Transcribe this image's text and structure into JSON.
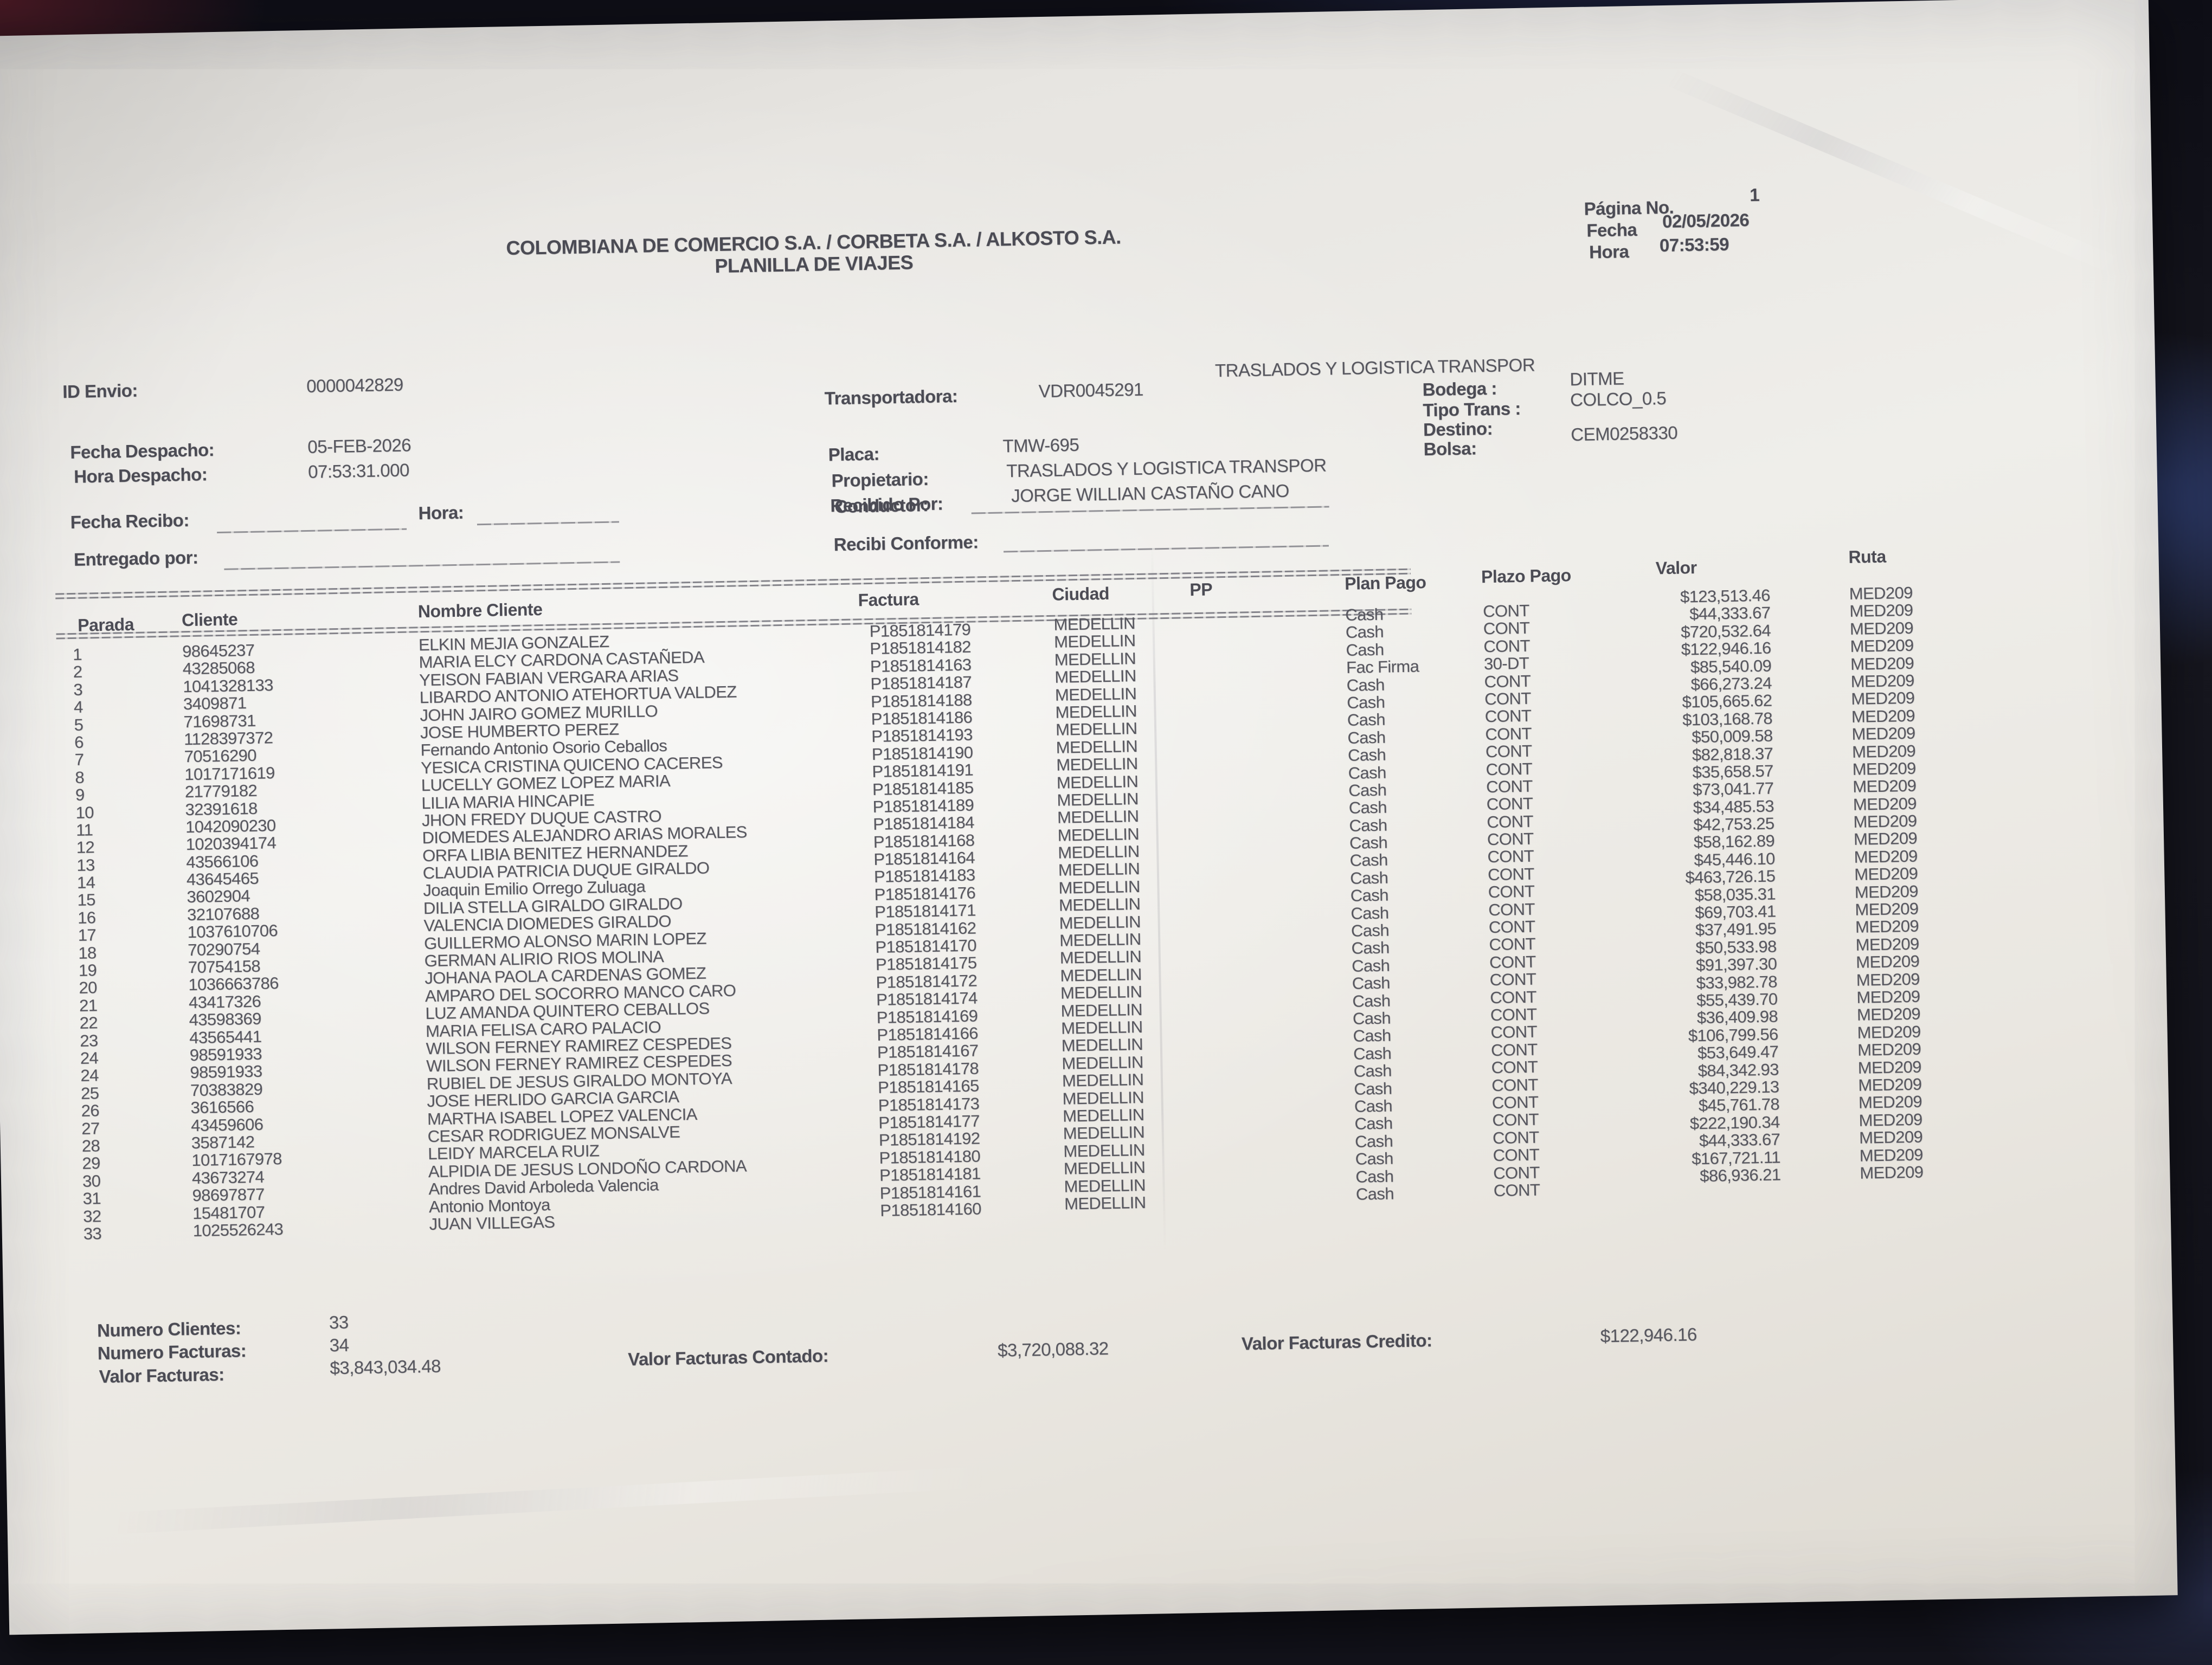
{
  "header": {
    "title_line1": "COLOMBIANA DE COMERCIO S.A. / CORBETA S.A. / ALKOSTO S.A.",
    "title_line2": "PLANILLA DE VIAJES",
    "pagina_label": "Página No.",
    "pagina_no": "1",
    "fecha_label": "Fecha",
    "fecha": "02/05/2026",
    "hora_label": "Hora",
    "hora": "07:53:59"
  },
  "envio": {
    "id_envio_label": "ID Envio:",
    "id_envio": "0000042829",
    "fecha_despacho_label": "Fecha Despacho:",
    "fecha_despacho": "05-FEB-2026",
    "hora_despacho_label": "Hora Despacho:",
    "hora_despacho": "07:53:31.000"
  },
  "transporte": {
    "transportadora_label": "Transportadora:",
    "transportadora_codigo": "VDR0045291",
    "transportadora_nombre": "TRASLADOS Y LOGISTICA TRANSPOR",
    "placa_label": "Placa:",
    "placa": "TMW-695",
    "propietario_label": "Propietario:",
    "propietario": "TRASLADOS Y LOGISTICA TRANSPOR",
    "conductor_label": "Conductor:",
    "conductor": "JORGE WILLIAN CASTAÑO CANO",
    "bodega_label": "Bodega :",
    "bodega": "DITME",
    "tipo_trans_label": "Tipo Trans :",
    "tipo_trans": "COLCO_0.5",
    "destino_label": "Destino:",
    "destino": "",
    "bolsa_label": "Bolsa:",
    "bolsa": "CEM0258330"
  },
  "recepcion": {
    "fecha_recibo_label": "Fecha Recibo:",
    "hora_label": "Hora:",
    "recibido_por_label": "Recibido Por:",
    "entregado_por_label": "Entregado por:",
    "recibi_conforme_label": "Recibi Conforme:"
  },
  "table": {
    "headers": {
      "parada": "Parada",
      "cliente": "Cliente",
      "nombre": "Nombre Cliente",
      "factura": "Factura",
      "ciudad": "Ciudad",
      "pp": "PP",
      "plan": "Plan Pago",
      "plazo": "Plazo Pago",
      "valor": "Valor",
      "ruta": "Ruta"
    },
    "rows": [
      {
        "parada": "1",
        "cliente": "98645237",
        "nombre": "ELKIN MEJIA GONZALEZ",
        "factura": "P1851814179",
        "ciudad": "MEDELLIN",
        "plan": "Cash",
        "plazo": "CONT",
        "valor": "$123,513.46",
        "ruta": "MED209"
      },
      {
        "parada": "2",
        "cliente": "43285068",
        "nombre": "MARIA ELCY CARDONA CASTAÑEDA",
        "factura": "P1851814182",
        "ciudad": "MEDELLIN",
        "plan": "Cash",
        "plazo": "CONT",
        "valor": "$44,333.67",
        "ruta": "MED209"
      },
      {
        "parada": "3",
        "cliente": "1041328133",
        "nombre": "YEISON FABIAN VERGARA ARIAS",
        "factura": "P1851814163",
        "ciudad": "MEDELLIN",
        "plan": "Cash",
        "plazo": "CONT",
        "valor": "$720,532.64",
        "ruta": "MED209"
      },
      {
        "parada": "4",
        "cliente": "3409871",
        "nombre": "LIBARDO ANTONIO ATEHORTUA VALDEZ",
        "factura": "P1851814187",
        "ciudad": "MEDELLIN",
        "plan": "Fac Firma",
        "plazo": "30-DT",
        "valor": "$122,946.16",
        "ruta": "MED209"
      },
      {
        "parada": "5",
        "cliente": "71698731",
        "nombre": "JOHN JAIRO GOMEZ MURILLO",
        "factura": "P1851814188",
        "ciudad": "MEDELLIN",
        "plan": "Cash",
        "plazo": "CONT",
        "valor": "$85,540.09",
        "ruta": "MED209"
      },
      {
        "parada": "6",
        "cliente": "1128397372",
        "nombre": "JOSE HUMBERTO PEREZ",
        "factura": "P1851814186",
        "ciudad": "MEDELLIN",
        "plan": "Cash",
        "plazo": "CONT",
        "valor": "$66,273.24",
        "ruta": "MED209"
      },
      {
        "parada": "7",
        "cliente": "70516290",
        "nombre": "Fernando Antonio Osorio Ceballos",
        "factura": "P1851814193",
        "ciudad": "MEDELLIN",
        "plan": "Cash",
        "plazo": "CONT",
        "valor": "$105,665.62",
        "ruta": "MED209"
      },
      {
        "parada": "8",
        "cliente": "1017171619",
        "nombre": "YESICA CRISTINA QUICENO CACERES",
        "factura": "P1851814190",
        "ciudad": "MEDELLIN",
        "plan": "Cash",
        "plazo": "CONT",
        "valor": "$103,168.78",
        "ruta": "MED209"
      },
      {
        "parada": "9",
        "cliente": "21779182",
        "nombre": "LUCELLY GOMEZ LOPEZ MARIA",
        "factura": "P1851814191",
        "ciudad": "MEDELLIN",
        "plan": "Cash",
        "plazo": "CONT",
        "valor": "$50,009.58",
        "ruta": "MED209"
      },
      {
        "parada": "10",
        "cliente": "32391618",
        "nombre": "LILIA MARIA HINCAPIE",
        "factura": "P1851814185",
        "ciudad": "MEDELLIN",
        "plan": "Cash",
        "plazo": "CONT",
        "valor": "$82,818.37",
        "ruta": "MED209"
      },
      {
        "parada": "11",
        "cliente": "1042090230",
        "nombre": "JHON FREDY DUQUE CASTRO",
        "factura": "P1851814189",
        "ciudad": "MEDELLIN",
        "plan": "Cash",
        "plazo": "CONT",
        "valor": "$35,658.57",
        "ruta": "MED209"
      },
      {
        "parada": "12",
        "cliente": "1020394174",
        "nombre": "DIOMEDES ALEJANDRO ARIAS MORALES",
        "factura": "P1851814184",
        "ciudad": "MEDELLIN",
        "plan": "Cash",
        "plazo": "CONT",
        "valor": "$73,041.77",
        "ruta": "MED209"
      },
      {
        "parada": "13",
        "cliente": "43566106",
        "nombre": "ORFA LIBIA BENITEZ HERNANDEZ",
        "factura": "P1851814168",
        "ciudad": "MEDELLIN",
        "plan": "Cash",
        "plazo": "CONT",
        "valor": "$34,485.53",
        "ruta": "MED209"
      },
      {
        "parada": "14",
        "cliente": "43645465",
        "nombre": "CLAUDIA PATRICIA DUQUE GIRALDO",
        "factura": "P1851814164",
        "ciudad": "MEDELLIN",
        "plan": "Cash",
        "plazo": "CONT",
        "valor": "$42,753.25",
        "ruta": "MED209"
      },
      {
        "parada": "15",
        "cliente": "3602904",
        "nombre": "Joaquin Emilio Orrego Zuluaga",
        "factura": "P1851814183",
        "ciudad": "MEDELLIN",
        "plan": "Cash",
        "plazo": "CONT",
        "valor": "$58,162.89",
        "ruta": "MED209"
      },
      {
        "parada": "16",
        "cliente": "32107688",
        "nombre": "DILIA STELLA GIRALDO GIRALDO",
        "factura": "P1851814176",
        "ciudad": "MEDELLIN",
        "plan": "Cash",
        "plazo": "CONT",
        "valor": "$45,446.10",
        "ruta": "MED209"
      },
      {
        "parada": "17",
        "cliente": "1037610706",
        "nombre": "VALENCIA DIOMEDES GIRALDO",
        "factura": "P1851814171",
        "ciudad": "MEDELLIN",
        "plan": "Cash",
        "plazo": "CONT",
        "valor": "$463,726.15",
        "ruta": "MED209"
      },
      {
        "parada": "18",
        "cliente": "70290754",
        "nombre": "GUILLERMO ALONSO MARIN LOPEZ",
        "factura": "P1851814162",
        "ciudad": "MEDELLIN",
        "plan": "Cash",
        "plazo": "CONT",
        "valor": "$58,035.31",
        "ruta": "MED209"
      },
      {
        "parada": "19",
        "cliente": "70754158",
        "nombre": "GERMAN ALIRIO RIOS MOLINA",
        "factura": "P1851814170",
        "ciudad": "MEDELLIN",
        "plan": "Cash",
        "plazo": "CONT",
        "valor": "$69,703.41",
        "ruta": "MED209"
      },
      {
        "parada": "20",
        "cliente": "1036663786",
        "nombre": "JOHANA PAOLA CARDENAS GOMEZ",
        "factura": "P1851814175",
        "ciudad": "MEDELLIN",
        "plan": "Cash",
        "plazo": "CONT",
        "valor": "$37,491.95",
        "ruta": "MED209"
      },
      {
        "parada": "21",
        "cliente": "43417326",
        "nombre": "AMPARO DEL SOCORRO MANCO CARO",
        "factura": "P1851814172",
        "ciudad": "MEDELLIN",
        "plan": "Cash",
        "plazo": "CONT",
        "valor": "$50,533.98",
        "ruta": "MED209"
      },
      {
        "parada": "22",
        "cliente": "43598369",
        "nombre": "LUZ AMANDA QUINTERO CEBALLOS",
        "factura": "P1851814174",
        "ciudad": "MEDELLIN",
        "plan": "Cash",
        "plazo": "CONT",
        "valor": "$91,397.30",
        "ruta": "MED209"
      },
      {
        "parada": "23",
        "cliente": "43565441",
        "nombre": "MARIA FELISA CARO PALACIO",
        "factura": "P1851814169",
        "ciudad": "MEDELLIN",
        "plan": "Cash",
        "plazo": "CONT",
        "valor": "$33,982.78",
        "ruta": "MED209"
      },
      {
        "parada": "24",
        "cliente": "98591933",
        "nombre": "WILSON FERNEY RAMIREZ CESPEDES",
        "factura": "P1851814166",
        "ciudad": "MEDELLIN",
        "plan": "Cash",
        "plazo": "CONT",
        "valor": "$55,439.70",
        "ruta": "MED209"
      },
      {
        "parada": "24",
        "cliente": "98591933",
        "nombre": "WILSON FERNEY RAMIREZ CESPEDES",
        "factura": "P1851814167",
        "ciudad": "MEDELLIN",
        "plan": "Cash",
        "plazo": "CONT",
        "valor": "$36,409.98",
        "ruta": "MED209"
      },
      {
        "parada": "25",
        "cliente": "70383829",
        "nombre": "RUBIEL DE JESUS GIRALDO MONTOYA",
        "factura": "P1851814178",
        "ciudad": "MEDELLIN",
        "plan": "Cash",
        "plazo": "CONT",
        "valor": "$106,799.56",
        "ruta": "MED209"
      },
      {
        "parada": "26",
        "cliente": "3616566",
        "nombre": "JOSE HERLIDO GARCIA GARCIA",
        "factura": "P1851814165",
        "ciudad": "MEDELLIN",
        "plan": "Cash",
        "plazo": "CONT",
        "valor": "$53,649.47",
        "ruta": "MED209"
      },
      {
        "parada": "27",
        "cliente": "43459606",
        "nombre": "MARTHA ISABEL LOPEZ VALENCIA",
        "factura": "P1851814173",
        "ciudad": "MEDELLIN",
        "plan": "Cash",
        "plazo": "CONT",
        "valor": "$84,342.93",
        "ruta": "MED209"
      },
      {
        "parada": "28",
        "cliente": "3587142",
        "nombre": "CESAR RODRIGUEZ MONSALVE",
        "factura": "P1851814177",
        "ciudad": "MEDELLIN",
        "plan": "Cash",
        "plazo": "CONT",
        "valor": "$340,229.13",
        "ruta": "MED209"
      },
      {
        "parada": "29",
        "cliente": "1017167978",
        "nombre": "LEIDY MARCELA RUIZ",
        "factura": "P1851814192",
        "ciudad": "MEDELLIN",
        "plan": "Cash",
        "plazo": "CONT",
        "valor": "$45,761.78",
        "ruta": "MED209"
      },
      {
        "parada": "30",
        "cliente": "43673274",
        "nombre": "ALPIDIA DE JESUS LONDOÑO CARDONA",
        "factura": "P1851814180",
        "ciudad": "MEDELLIN",
        "plan": "Cash",
        "plazo": "CONT",
        "valor": "$222,190.34",
        "ruta": "MED209"
      },
      {
        "parada": "31",
        "cliente": "98697877",
        "nombre": "Andres David Arboleda Valencia",
        "factura": "P1851814181",
        "ciudad": "MEDELLIN",
        "plan": "Cash",
        "plazo": "CONT",
        "valor": "$44,333.67",
        "ruta": "MED209"
      },
      {
        "parada": "32",
        "cliente": "15481707",
        "nombre": "Antonio Montoya",
        "factura": "P1851814161",
        "ciudad": "MEDELLIN",
        "plan": "Cash",
        "plazo": "CONT",
        "valor": "$167,721.11",
        "ruta": "MED209"
      },
      {
        "parada": "33",
        "cliente": "1025526243",
        "nombre": "JUAN VILLEGAS",
        "factura": "P1851814160",
        "ciudad": "MEDELLIN",
        "plan": "Cash",
        "plazo": "CONT",
        "valor": "$86,936.21",
        "ruta": "MED209"
      }
    ]
  },
  "totals": {
    "numero_clientes_label": "Numero Clientes:",
    "numero_clientes": "33",
    "numero_facturas_label": "Numero Facturas:",
    "numero_facturas": "34",
    "valor_facturas_label": "Valor Facturas:",
    "valor_facturas": "$3,843,034.48",
    "valor_facturas_contado_label": "Valor Facturas Contado:",
    "valor_facturas_contado": "$3,720,088.32",
    "valor_facturas_credito_label": "Valor Facturas Credito:",
    "valor_facturas_credito": "$122,946.16"
  }
}
